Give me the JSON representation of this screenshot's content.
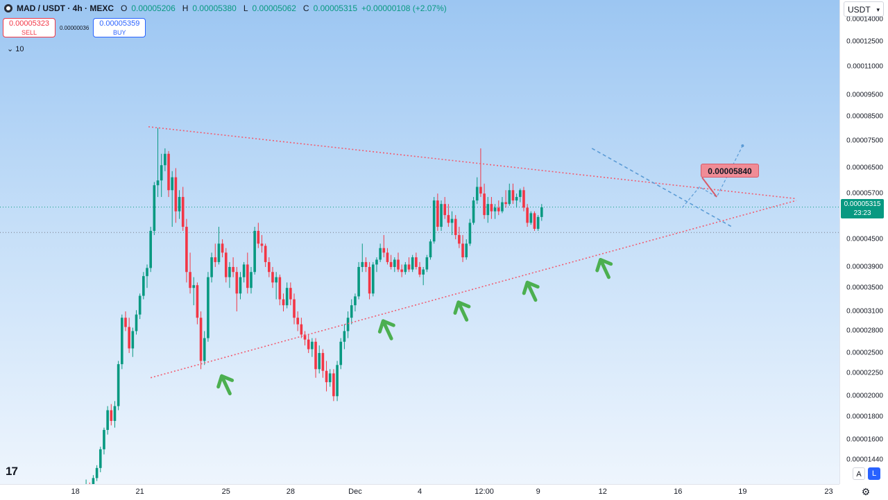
{
  "symbol": {
    "title": "MAD / USDT · 4h · MEXC",
    "open_label": "O",
    "open": "0.00005206",
    "high_label": "H",
    "high": "0.00005380",
    "low_label": "L",
    "low": "0.00005062",
    "close_label": "C",
    "close": "0.00005315",
    "change": "+0.00000108 (+2.07%)"
  },
  "trade": {
    "sell_price": "0.00005323",
    "sell_label": "SELL",
    "spread": "0.00000036",
    "buy_price": "0.00005359",
    "buy_label": "BUY"
  },
  "indicators_label": "10",
  "currency": "USDT",
  "current_price": {
    "price": "0.00005315",
    "countdown": "23:23"
  },
  "target_label": "0.00005840",
  "scale_buttons": {
    "auto": "A",
    "log": "L"
  },
  "logo": "17",
  "colors": {
    "up": "#089981",
    "down": "#f23645",
    "trendline": "#f25a6e",
    "arrow": "#4caf50",
    "projection": "#5b9bd5"
  },
  "icons": {
    "symbol": "coin-icon",
    "chevron": "chevron-down-icon",
    "settings": "gear-icon"
  },
  "chart_data": {
    "type": "candlestick",
    "scale": "log",
    "price_ticks": [
      "0.00014000",
      "0.00012500",
      "0.00011000",
      "0.00009500",
      "0.00008500",
      "0.00007500",
      "0.00006500",
      "0.00005700",
      "0.00004500",
      "0.00003900",
      "0.00003500",
      "0.00003100",
      "0.00002800",
      "0.00002500",
      "0.00002250",
      "0.00002000",
      "0.00001800",
      "0.00001600",
      "0.00001440"
    ],
    "price_tick_values": [
      0.00014,
      0.000125,
      0.00011,
      9.5e-05,
      8.5e-05,
      7.5e-05,
      6.5e-05,
      5.7e-05,
      4.5e-05,
      3.9e-05,
      3.5e-05,
      3.1e-05,
      2.8e-05,
      2.5e-05,
      2.25e-05,
      2e-05,
      1.8e-05,
      1.6e-05,
      1.44e-05
    ],
    "time_ticks": [
      "18",
      "21",
      "25",
      "28",
      "Dec",
      "4",
      "12:00",
      "9",
      "12",
      "16",
      "19",
      "23"
    ],
    "time_tick_days": [
      0,
      3,
      7,
      10,
      13,
      16,
      19,
      21.5,
      24.5,
      28,
      31,
      35
    ],
    "range_days": [
      -3.5,
      35.5
    ],
    "price_range": [
      1.27e-05,
      0.000155
    ],
    "candle_hours": 4,
    "candles_start_day": 0.5,
    "candles": [
      [
        1.2e-05,
        1.3e-05,
        1.16e-05,
        1.25e-05
      ],
      [
        1.25e-05,
        1.28e-05,
        1.18e-05,
        1.21e-05
      ],
      [
        1.21e-05,
        1.33e-05,
        1.19e-05,
        1.31e-05
      ],
      [
        1.31e-05,
        1.4e-05,
        1.29e-05,
        1.38e-05
      ],
      [
        1.38e-05,
        1.54e-05,
        1.35e-05,
        1.52e-05
      ],
      [
        1.52e-05,
        1.7e-05,
        1.48e-05,
        1.68e-05
      ],
      [
        1.68e-05,
        1.9e-05,
        1.64e-05,
        1.86e-05
      ],
      [
        1.86e-05,
        1.92e-05,
        1.72e-05,
        1.76e-05
      ],
      [
        1.76e-05,
        1.95e-05,
        1.7e-05,
        1.9e-05
      ],
      [
        1.9e-05,
        2.4e-05,
        1.86e-05,
        2.36e-05
      ],
      [
        2.36e-05,
        3.05e-05,
        2.3e-05,
        3e-05
      ],
      [
        3e-05,
        3.1e-05,
        2.8e-05,
        2.86e-05
      ],
      [
        2.86e-05,
        3e-05,
        2.5e-05,
        2.56e-05
      ],
      [
        2.56e-05,
        2.85e-05,
        2.45e-05,
        2.8e-05
      ],
      [
        2.8e-05,
        3.12e-05,
        2.75e-05,
        3.05e-05
      ],
      [
        3.05e-05,
        3.4e-05,
        2.98e-05,
        3.36e-05
      ],
      [
        3.36e-05,
        3.8e-05,
        3.3e-05,
        3.72e-05
      ],
      [
        3.72e-05,
        3.95e-05,
        3.5e-05,
        3.88e-05
      ],
      [
        3.88e-05,
        4.8e-05,
        3.8e-05,
        4.7e-05
      ],
      [
        4.7e-05,
        6.05e-05,
        4.6e-05,
        5.95e-05
      ],
      [
        5.95e-05,
        8e-05,
        5.6e-05,
        6.1e-05
      ],
      [
        6.1e-05,
        7e-05,
        5.6e-05,
        6.6e-05
      ],
      [
        6.6e-05,
        7.2e-05,
        6.4e-05,
        7e-05
      ],
      [
        7e-05,
        7.1e-05,
        5.6e-05,
        5.8e-05
      ],
      [
        5.8e-05,
        6.4e-05,
        4.8e-05,
        6.2e-05
      ],
      [
        6.2e-05,
        6.5e-05,
        4.9e-05,
        5.2e-05
      ],
      [
        5.2e-05,
        5.8e-05,
        5e-05,
        5.6e-05
      ],
      [
        5.6e-05,
        5.9e-05,
        4.7e-05,
        4.8e-05
      ],
      [
        4.8e-05,
        5e-05,
        3.6e-05,
        3.8e-05
      ],
      [
        3.8e-05,
        4.2e-05,
        3.4e-05,
        3.5e-05
      ],
      [
        3.5e-05,
        3.7e-05,
        3.2e-05,
        3.55e-05
      ],
      [
        3.55e-05,
        3.6e-05,
        2.9e-05,
        3e-05
      ],
      [
        3e-05,
        3.1e-05,
        2.3e-05,
        2.4e-05
      ],
      [
        2.4e-05,
        2.8e-05,
        2.35e-05,
        2.7e-05
      ],
      [
        2.7e-05,
        3.8e-05,
        2.65e-05,
        3.7e-05
      ],
      [
        3.7e-05,
        4.2e-05,
        3.6e-05,
        4.1e-05
      ],
      [
        4.1e-05,
        4.4e-05,
        3.9e-05,
        4e-05
      ],
      [
        4e-05,
        4.8e-05,
        3.95e-05,
        4.4e-05
      ],
      [
        4.4e-05,
        4.5e-05,
        4.1e-05,
        4.2e-05
      ],
      [
        4.2e-05,
        4.3e-05,
        3.6e-05,
        3.7e-05
      ],
      [
        3.7e-05,
        4e-05,
        3.5e-05,
        3.9e-05
      ],
      [
        3.9e-05,
        4.1e-05,
        3.7e-05,
        3.8e-05
      ],
      [
        3.8e-05,
        3.9e-05,
        3.1e-05,
        3.4e-05
      ],
      [
        3.4e-05,
        3.8e-05,
        3.3e-05,
        3.7e-05
      ],
      [
        3.7e-05,
        4e-05,
        3.6e-05,
        3.95e-05
      ],
      [
        3.95e-05,
        4.2e-05,
        3.4e-05,
        3.5e-05
      ],
      [
        3.5e-05,
        3.9e-05,
        3.4e-05,
        3.8e-05
      ],
      [
        3.8e-05,
        4.8e-05,
        3.75e-05,
        4.7e-05
      ],
      [
        4.7e-05,
        4.9e-05,
        4.3e-05,
        4.4e-05
      ],
      [
        4.4e-05,
        4.6e-05,
        4.2e-05,
        4.35e-05
      ],
      [
        4.35e-05,
        4.4e-05,
        3.9e-05,
        4e-05
      ],
      [
        4e-05,
        4.1e-05,
        3.7e-05,
        3.8e-05
      ],
      [
        3.8e-05,
        3.9e-05,
        3.5e-05,
        3.6e-05
      ],
      [
        3.6e-05,
        3.8e-05,
        3.3e-05,
        3.7e-05
      ],
      [
        3.7e-05,
        3.75e-05,
        3.2e-05,
        3.3e-05
      ],
      [
        3.3e-05,
        3.4e-05,
        3.1e-05,
        3.2e-05
      ],
      [
        3.2e-05,
        3.6e-05,
        3.15e-05,
        3.5e-05
      ],
      [
        3.5e-05,
        3.6e-05,
        3.2e-05,
        3.3e-05
      ],
      [
        3.3e-05,
        3.4e-05,
        2.9e-05,
        3e-05
      ],
      [
        3e-05,
        3.1e-05,
        2.8e-05,
        2.9e-05
      ],
      [
        2.9e-05,
        3e-05,
        2.7e-05,
        2.75e-05
      ],
      [
        2.75e-05,
        2.8e-05,
        2.6e-05,
        2.68e-05
      ],
      [
        2.68e-05,
        2.75e-05,
        2.5e-05,
        2.55e-05
      ],
      [
        2.55e-05,
        2.7e-05,
        2.45e-05,
        2.65e-05
      ],
      [
        2.65e-05,
        2.7e-05,
        2.2e-05,
        2.3e-05
      ],
      [
        2.3e-05,
        2.6e-05,
        2.25e-05,
        2.5e-05
      ],
      [
        2.5e-05,
        2.55e-05,
        2.2e-05,
        2.28e-05
      ],
      [
        2.28e-05,
        2.4e-05,
        2.05e-05,
        2.15e-05
      ],
      [
        2.15e-05,
        2.3e-05,
        2.1e-05,
        2.25e-05
      ],
      [
        2.25e-05,
        2.3e-05,
        1.95e-05,
        2e-05
      ],
      [
        2e-05,
        2.4e-05,
        1.95e-05,
        2.35e-05
      ],
      [
        2.35e-05,
        2.7e-05,
        2.3e-05,
        2.65e-05
      ],
      [
        2.65e-05,
        2.9e-05,
        2.55e-05,
        2.8e-05
      ],
      [
        2.8e-05,
        3.1e-05,
        2.7e-05,
        3e-05
      ],
      [
        3e-05,
        3.3e-05,
        2.9e-05,
        3.2e-05
      ],
      [
        3.2e-05,
        3.4e-05,
        3.1e-05,
        3.35e-05
      ],
      [
        3.35e-05,
        4e-05,
        3.3e-05,
        3.9e-05
      ],
      [
        3.9e-05,
        4.4e-05,
        3.8e-05,
        4e-05
      ],
      [
        4e-05,
        4.1e-05,
        3.8e-05,
        3.9e-05
      ],
      [
        3.9e-05,
        4e-05,
        3.3e-05,
        3.4e-05
      ],
      [
        3.4e-05,
        4e-05,
        3.35e-05,
        3.95e-05
      ],
      [
        3.95e-05,
        4.1e-05,
        3.8e-05,
        4.05e-05
      ],
      [
        4.05e-05,
        4.4e-05,
        4e-05,
        4.3e-05
      ],
      [
        4.3e-05,
        4.6e-05,
        4.1e-05,
        4.2e-05
      ],
      [
        4.2e-05,
        4.3e-05,
        3.95e-05,
        4e-05
      ],
      [
        4e-05,
        4.15e-05,
        3.85e-05,
        3.9e-05
      ],
      [
        3.9e-05,
        4.1e-05,
        3.8e-05,
        4.05e-05
      ],
      [
        4.05e-05,
        4.2e-05,
        3.8e-05,
        3.85e-05
      ],
      [
        3.85e-05,
        3.95e-05,
        3.7e-05,
        3.8e-05
      ],
      [
        3.8e-05,
        4e-05,
        3.75e-05,
        3.95e-05
      ],
      [
        3.95e-05,
        4.1e-05,
        3.8e-05,
        3.85e-05
      ],
      [
        3.85e-05,
        4.15e-05,
        3.8e-05,
        4.1e-05
      ],
      [
        4.1e-05,
        4.2e-05,
        3.85e-05,
        3.9e-05
      ],
      [
        3.9e-05,
        4e-05,
        3.7e-05,
        3.75e-05
      ],
      [
        3.75e-05,
        3.9e-05,
        3.55e-05,
        3.85e-05
      ],
      [
        3.85e-05,
        4.15e-05,
        3.8e-05,
        4.1e-05
      ],
      [
        4.1e-05,
        4.5e-05,
        4.05e-05,
        4.45e-05
      ],
      [
        4.45e-05,
        5.6e-05,
        4.4e-05,
        5.5e-05
      ],
      [
        5.5e-05,
        5.7e-05,
        4.7e-05,
        4.8e-05
      ],
      [
        4.8e-05,
        5.5e-05,
        4.7e-05,
        5.4e-05
      ],
      [
        5.4e-05,
        5.6e-05,
        5e-05,
        5.1e-05
      ],
      [
        5.1e-05,
        5.4e-05,
        4.8e-05,
        4.9e-05
      ],
      [
        4.9e-05,
        5.2e-05,
        4.6e-05,
        5e-05
      ],
      [
        5e-05,
        5.1e-05,
        4.5e-05,
        4.6e-05
      ],
      [
        4.6e-05,
        4.8e-05,
        4.3e-05,
        4.4e-05
      ],
      [
        4.4e-05,
        4.6e-05,
        4e-05,
        4.1e-05
      ],
      [
        4.1e-05,
        4.5e-05,
        4.05e-05,
        4.4e-05
      ],
      [
        4.4e-05,
        5e-05,
        4.35e-05,
        4.9e-05
      ],
      [
        4.9e-05,
        5.6e-05,
        4.85e-05,
        5.5e-05
      ],
      [
        5.5e-05,
        6.2e-05,
        5.4e-05,
        5.9e-05
      ],
      [
        5.9e-05,
        7.2e-05,
        5.6e-05,
        5.7e-05
      ],
      [
        5.7e-05,
        6e-05,
        5e-05,
        5.1e-05
      ],
      [
        5.1e-05,
        5.6e-05,
        4.9e-05,
        5.4e-05
      ],
      [
        5.4e-05,
        5.6e-05,
        5e-05,
        5.2e-05
      ],
      [
        5.2e-05,
        5.4e-05,
        5e-05,
        5.3e-05
      ],
      [
        5.3e-05,
        5.5e-05,
        5.1e-05,
        5.2e-05
      ],
      [
        5.2e-05,
        5.6e-05,
        5.15e-05,
        5.45e-05
      ],
      [
        5.45e-05,
        5.8e-05,
        5.3e-05,
        5.4e-05
      ],
      [
        5.4e-05,
        6e-05,
        5.35e-05,
        5.8e-05
      ],
      [
        5.8e-05,
        6e-05,
        5.4e-05,
        5.5e-05
      ],
      [
        5.5e-05,
        5.7e-05,
        5.3e-05,
        5.6e-05
      ],
      [
        5.6e-05,
        5.85e-05,
        5.45e-05,
        5.8e-05
      ],
      [
        5.8e-05,
        5.9e-05,
        5.2e-05,
        5.3e-05
      ],
      [
        5.3e-05,
        5.4e-05,
        4.8e-05,
        4.9e-05
      ],
      [
        4.9e-05,
        5.2e-05,
        4.85e-05,
        5.15e-05
      ],
      [
        5.15e-05,
        5.2e-05,
        4.7e-05,
        4.75e-05
      ],
      [
        4.75e-05,
        5.1e-05,
        4.7e-05,
        5.05e-05
      ],
      [
        5.05e-05,
        5.4e-05,
        4.95e-05,
        5.31e-05
      ]
    ],
    "annotations": {
      "resistance": {
        "from": [
          3.4,
          8.05e-05
        ],
        "to": [
          33.5,
          5.55e-05
        ]
      },
      "support": {
        "from": [
          3.5,
          2.2e-05
        ],
        "to": [
          33.5,
          5.5e-05
        ]
      },
      "descending_dashed": {
        "from": [
          24,
          7.2e-05
        ],
        "to": [
          30.5,
          4.8e-05
        ]
      },
      "projection": [
        [
          28.2,
          5.3e-05
        ],
        [
          29.0,
          5.9e-05
        ],
        [
          29.8,
          5.6e-05
        ],
        [
          31.0,
          7.3e-05
        ]
      ],
      "current_price_line": 5.315e-05,
      "support_level_line": 4.66e-05,
      "target_price": 5.84e-05,
      "target_arrow_point": [
        29.8,
        5.6e-05
      ],
      "up_arrows": [
        [
          6.8,
          2.22e-05
        ],
        [
          14.3,
          2.95e-05
        ],
        [
          17.8,
          3.25e-05
        ],
        [
          21.0,
          3.6e-05
        ],
        [
          24.4,
          4.05e-05
        ]
      ]
    }
  }
}
